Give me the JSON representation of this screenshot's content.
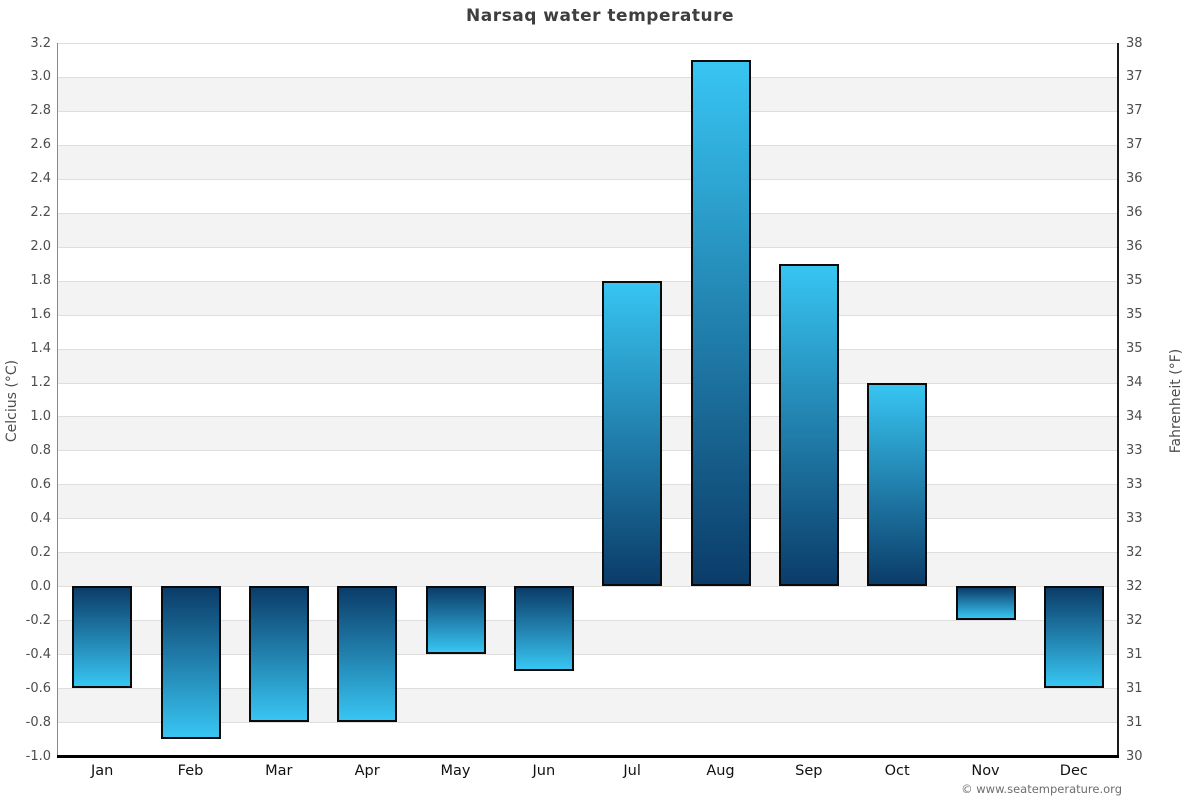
{
  "chart_data": {
    "type": "bar",
    "title": "Narsaq water temperature",
    "categories": [
      "Jan",
      "Feb",
      "Mar",
      "Apr",
      "May",
      "Jun",
      "Jul",
      "Aug",
      "Sep",
      "Oct",
      "Nov",
      "Dec"
    ],
    "values": [
      -0.6,
      -0.9,
      -0.8,
      -0.8,
      -0.4,
      -0.5,
      1.8,
      3.1,
      1.9,
      1.2,
      -0.2,
      -0.6
    ],
    "units": "celsius",
    "ylabel_left": "Celcius (°C)",
    "ylabel_right": "Fahrenheit (°F)",
    "ylim": [
      -1.0,
      3.2
    ],
    "tick_step": 0.2,
    "yticks_celsius": [
      "3.2",
      "3.0",
      "2.8",
      "2.6",
      "2.4",
      "2.2",
      "2.0",
      "1.8",
      "1.6",
      "1.4",
      "1.2",
      "1.0",
      "0.8",
      "0.6",
      "0.4",
      "0.2",
      "0.0",
      "-0.2",
      "-0.4",
      "-0.6",
      "-0.8",
      "-1.0"
    ],
    "yticks_fahrenheit": [
      "38",
      "37",
      "37",
      "37",
      "36",
      "36",
      "36",
      "35",
      "35",
      "35",
      "34",
      "34",
      "33",
      "33",
      "33",
      "32",
      "32",
      "32",
      "31",
      "31",
      "31",
      "30"
    ],
    "grid": true,
    "legend": "none",
    "layout": {
      "band_alternation": "white-gray striped horizontal bands",
      "bar_gradient": "dark navy at zero baseline to bright cyan at bar tip"
    },
    "colors": {
      "bar_tip": "#38c5f2",
      "bar_base": "#0b3c69",
      "bar_border": "#0a0a0a",
      "band_gray": "#f3f3f3",
      "band_white": "#ffffff",
      "gridline": "#dedede",
      "title_text": "#3e3e3e",
      "tick_text": "#4d4d4d",
      "month_text": "#111111"
    }
  },
  "footer": {
    "copyright": "© www.seatemperature.org"
  }
}
